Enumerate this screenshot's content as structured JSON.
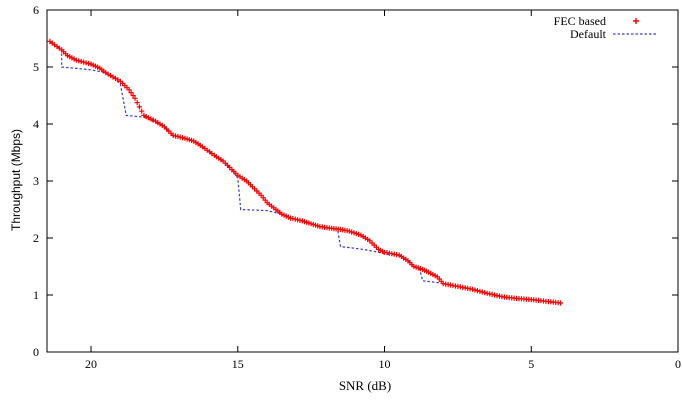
{
  "chart_data": {
    "type": "line",
    "xlabel": "SNR (dB)",
    "ylabel": "Throughput (Mbps)",
    "xlim": [
      21.5,
      0
    ],
    "ylim": [
      0,
      6
    ],
    "x_ticks": [
      20,
      15,
      10,
      5,
      0
    ],
    "y_ticks": [
      0,
      1,
      2,
      3,
      4,
      5,
      6
    ],
    "grid": false,
    "legend_position": "top-right",
    "series": [
      {
        "name": "FEC based",
        "style": "markers",
        "marker": "+",
        "color": "#ff0000",
        "points": [
          [
            21.4,
            5.45
          ],
          [
            21.0,
            5.3
          ],
          [
            20.8,
            5.2
          ],
          [
            20.5,
            5.12
          ],
          [
            20.0,
            5.05
          ],
          [
            19.7,
            4.98
          ],
          [
            19.5,
            4.9
          ],
          [
            19.0,
            4.75
          ],
          [
            18.7,
            4.6
          ],
          [
            18.5,
            4.45
          ],
          [
            18.2,
            4.15
          ],
          [
            17.8,
            4.05
          ],
          [
            17.5,
            3.95
          ],
          [
            17.2,
            3.8
          ],
          [
            16.8,
            3.75
          ],
          [
            16.5,
            3.7
          ],
          [
            16.2,
            3.6
          ],
          [
            15.8,
            3.45
          ],
          [
            15.5,
            3.35
          ],
          [
            15.2,
            3.2
          ],
          [
            15.0,
            3.1
          ],
          [
            14.7,
            3.0
          ],
          [
            14.5,
            2.9
          ],
          [
            14.2,
            2.75
          ],
          [
            14.0,
            2.62
          ],
          [
            13.7,
            2.5
          ],
          [
            13.5,
            2.42
          ],
          [
            13.2,
            2.35
          ],
          [
            12.8,
            2.3
          ],
          [
            12.5,
            2.25
          ],
          [
            12.2,
            2.2
          ],
          [
            11.8,
            2.17
          ],
          [
            11.5,
            2.15
          ],
          [
            11.2,
            2.12
          ],
          [
            10.8,
            2.05
          ],
          [
            10.5,
            1.95
          ],
          [
            10.2,
            1.8
          ],
          [
            10.0,
            1.75
          ],
          [
            9.5,
            1.7
          ],
          [
            9.2,
            1.6
          ],
          [
            9.0,
            1.5
          ],
          [
            8.7,
            1.45
          ],
          [
            8.5,
            1.4
          ],
          [
            8.2,
            1.32
          ],
          [
            8.0,
            1.2
          ],
          [
            7.5,
            1.15
          ],
          [
            7.0,
            1.1
          ],
          [
            6.5,
            1.03
          ],
          [
            6.0,
            0.97
          ],
          [
            5.5,
            0.94
          ],
          [
            5.0,
            0.92
          ],
          [
            4.5,
            0.89
          ],
          [
            4.0,
            0.86
          ]
        ]
      },
      {
        "name": "Default",
        "style": "dashed",
        "color": "#3a3ad8",
        "points": [
          [
            21.4,
            5.45
          ],
          [
            21.0,
            5.3
          ],
          [
            21.0,
            5.0
          ],
          [
            20.0,
            4.95
          ],
          [
            19.5,
            4.9
          ],
          [
            19.2,
            4.8
          ],
          [
            19.0,
            4.7
          ],
          [
            18.8,
            4.15
          ],
          [
            18.2,
            4.12
          ],
          [
            17.5,
            3.95
          ],
          [
            17.2,
            3.8
          ],
          [
            16.8,
            3.75
          ],
          [
            16.5,
            3.7
          ],
          [
            16.2,
            3.6
          ],
          [
            15.8,
            3.45
          ],
          [
            15.5,
            3.35
          ],
          [
            15.2,
            3.2
          ],
          [
            15.0,
            3.05
          ],
          [
            14.9,
            2.5
          ],
          [
            14.0,
            2.48
          ],
          [
            13.5,
            2.42
          ],
          [
            13.2,
            2.35
          ],
          [
            12.8,
            2.3
          ],
          [
            12.5,
            2.25
          ],
          [
            12.2,
            2.2
          ],
          [
            11.8,
            2.17
          ],
          [
            11.6,
            2.15
          ],
          [
            11.5,
            1.85
          ],
          [
            11.0,
            1.82
          ],
          [
            10.5,
            1.78
          ],
          [
            10.2,
            1.75
          ],
          [
            10.0,
            1.72
          ],
          [
            9.5,
            1.7
          ],
          [
            9.2,
            1.6
          ],
          [
            9.0,
            1.5
          ],
          [
            8.8,
            1.45
          ],
          [
            8.7,
            1.25
          ],
          [
            8.2,
            1.22
          ],
          [
            8.0,
            1.2
          ],
          [
            7.5,
            1.15
          ],
          [
            7.0,
            1.1
          ],
          [
            6.5,
            1.03
          ],
          [
            6.0,
            0.97
          ],
          [
            5.5,
            0.94
          ],
          [
            5.0,
            0.92
          ],
          [
            4.5,
            0.89
          ],
          [
            4.0,
            0.86
          ]
        ]
      }
    ]
  }
}
